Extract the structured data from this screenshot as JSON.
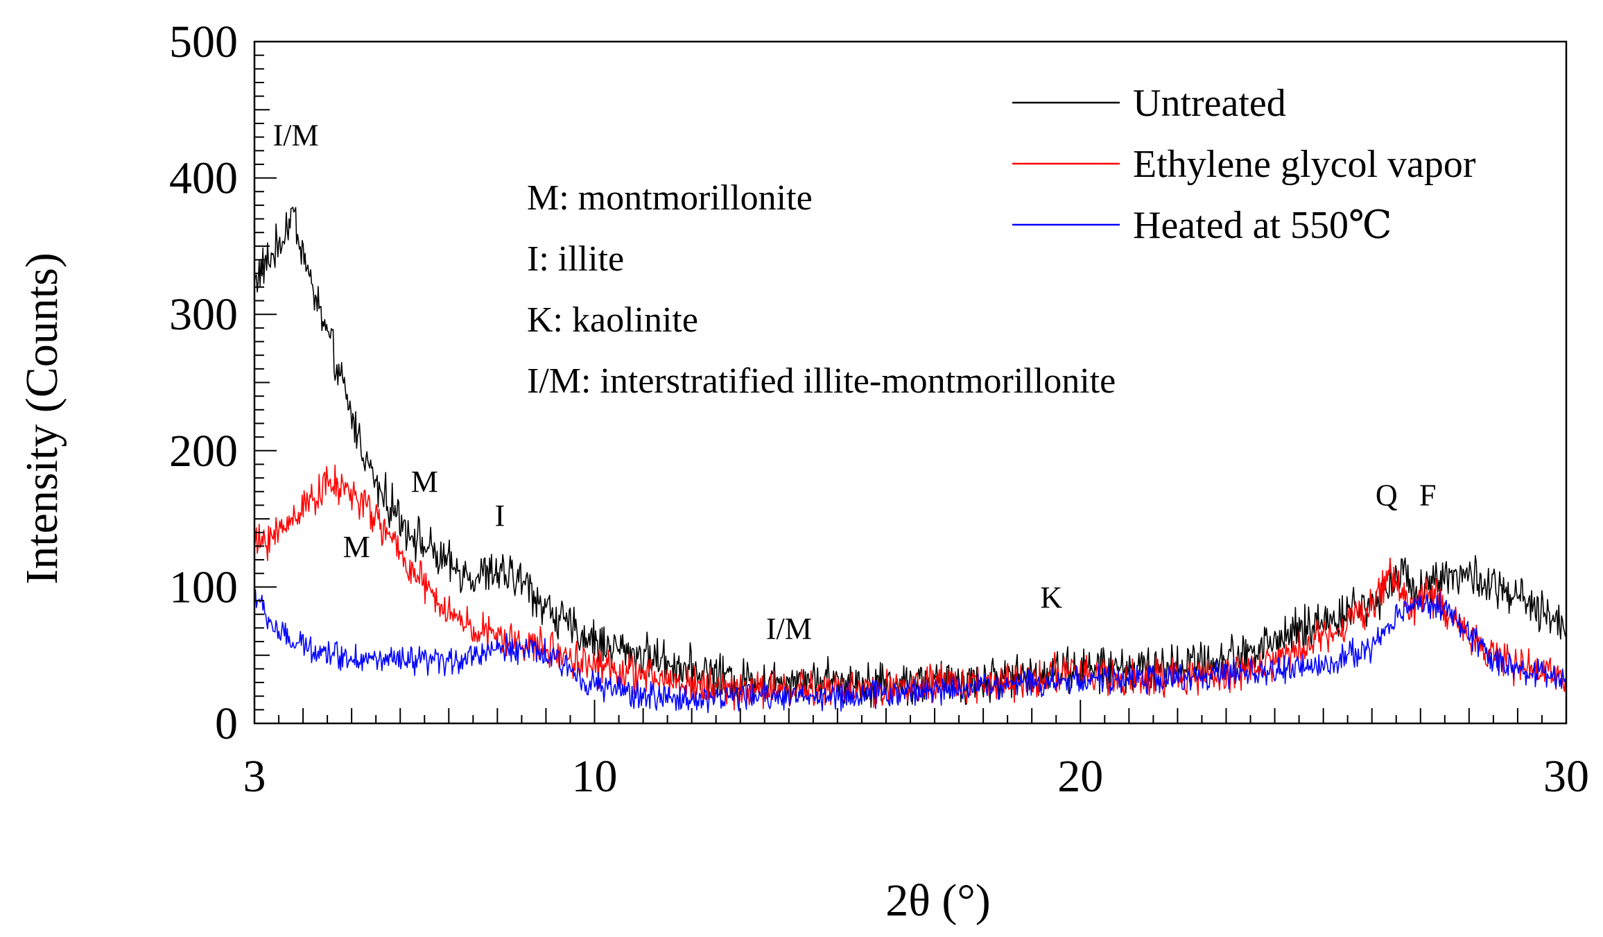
{
  "chart_data": {
    "type": "line",
    "title": "",
    "xlabel": "2θ (°)",
    "ylabel": "Intensity (Counts)",
    "xlim": [
      3,
      30
    ],
    "ylim": [
      0,
      500
    ],
    "x_ticks": [
      3,
      10,
      20,
      30
    ],
    "y_ticks": [
      0,
      100,
      200,
      300,
      400,
      500
    ],
    "grid": false,
    "legend_position": "top-right",
    "series": [
      {
        "name": "Untreated",
        "color": "#000000",
        "noise": 14,
        "points": [
          [
            3,
            325
          ],
          [
            3.5,
            350
          ],
          [
            3.8,
            375
          ],
          [
            4.1,
            330
          ],
          [
            4.5,
            285
          ],
          [
            5,
            225
          ],
          [
            5.5,
            175
          ],
          [
            6,
            150
          ],
          [
            6.5,
            130
          ],
          [
            7,
            115
          ],
          [
            7.5,
            108
          ],
          [
            8,
            110
          ],
          [
            8.5,
            105
          ],
          [
            9,
            85
          ],
          [
            9.5,
            70
          ],
          [
            10,
            60
          ],
          [
            11,
            50
          ],
          [
            12,
            40
          ],
          [
            13,
            32
          ],
          [
            14,
            33
          ],
          [
            15,
            32
          ],
          [
            16,
            30
          ],
          [
            17,
            30
          ],
          [
            18,
            32
          ],
          [
            19,
            35
          ],
          [
            19.5,
            40
          ],
          [
            20,
            40
          ],
          [
            21,
            40
          ],
          [
            22,
            42
          ],
          [
            23,
            47
          ],
          [
            24,
            60
          ],
          [
            25,
            75
          ],
          [
            25.5,
            82
          ],
          [
            26,
            88
          ],
          [
            26.5,
            110
          ],
          [
            27,
            100
          ],
          [
            27.5,
            110
          ],
          [
            28,
            108
          ],
          [
            28.5,
            100
          ],
          [
            29,
            92
          ],
          [
            29.5,
            80
          ],
          [
            30,
            72
          ]
        ]
      },
      {
        "name": "Ethylene glycol vapor",
        "color": "#ff0000",
        "noise": 12,
        "points": [
          [
            3,
            130
          ],
          [
            3.5,
            140
          ],
          [
            4,
            160
          ],
          [
            4.5,
            175
          ],
          [
            5,
            170
          ],
          [
            5.5,
            150
          ],
          [
            6,
            125
          ],
          [
            6.5,
            100
          ],
          [
            7,
            80
          ],
          [
            7.5,
            70
          ],
          [
            8,
            62
          ],
          [
            9,
            55
          ],
          [
            10,
            42
          ],
          [
            11,
            35
          ],
          [
            12,
            28
          ],
          [
            13,
            25
          ],
          [
            14,
            25
          ],
          [
            15,
            25
          ],
          [
            16,
            25
          ],
          [
            17,
            28
          ],
          [
            18,
            30
          ],
          [
            19,
            32
          ],
          [
            19.5,
            38
          ],
          [
            20,
            35
          ],
          [
            21,
            33
          ],
          [
            22,
            32
          ],
          [
            23,
            37
          ],
          [
            24,
            45
          ],
          [
            25,
            65
          ],
          [
            26,
            85
          ],
          [
            26.4,
            112
          ],
          [
            26.8,
            85
          ],
          [
            27.2,
            95
          ],
          [
            27.6,
            80
          ],
          [
            28,
            65
          ],
          [
            28.5,
            50
          ],
          [
            29,
            40
          ],
          [
            30,
            35
          ]
        ]
      },
      {
        "name": "Heated at 550℃",
        "color": "#0000ff",
        "noise": 9,
        "points": [
          [
            3,
            95
          ],
          [
            3.3,
            75
          ],
          [
            3.7,
            60
          ],
          [
            4.2,
            55
          ],
          [
            5,
            48
          ],
          [
            6,
            45
          ],
          [
            7,
            45
          ],
          [
            7.5,
            50
          ],
          [
            8,
            55
          ],
          [
            8.5,
            55
          ],
          [
            9,
            50
          ],
          [
            9.5,
            40
          ],
          [
            10,
            28
          ],
          [
            11,
            20
          ],
          [
            12,
            18
          ],
          [
            13,
            20
          ],
          [
            14,
            20
          ],
          [
            15,
            20
          ],
          [
            16,
            22
          ],
          [
            17,
            25
          ],
          [
            18,
            28
          ],
          [
            19,
            30
          ],
          [
            20,
            32
          ],
          [
            21,
            32
          ],
          [
            22,
            33
          ],
          [
            23,
            35
          ],
          [
            24,
            38
          ],
          [
            25,
            42
          ],
          [
            25.5,
            50
          ],
          [
            26,
            55
          ],
          [
            26.5,
            80
          ],
          [
            27,
            90
          ],
          [
            27.5,
            85
          ],
          [
            28,
            65
          ],
          [
            28.5,
            48
          ],
          [
            29,
            40
          ],
          [
            30,
            32
          ]
        ]
      }
    ],
    "annotations": [
      {
        "text": "I/M",
        "x": 3.85,
        "y": 424,
        "color": "#000000"
      },
      {
        "text": "M",
        "x": 6.5,
        "y": 170,
        "color": "#000000"
      },
      {
        "text": "M",
        "x": 5.1,
        "y": 122,
        "color": "#ff0000"
      },
      {
        "text": "I",
        "x": 8.05,
        "y": 145,
        "color": "#000000"
      },
      {
        "text": "I/M",
        "x": 14.0,
        "y": 62,
        "color": "#000000"
      },
      {
        "text": "K",
        "x": 19.4,
        "y": 85,
        "color": "#000000"
      },
      {
        "text": "Q",
        "x": 26.3,
        "y": 160,
        "color": "#000000"
      },
      {
        "text": "F",
        "x": 27.15,
        "y": 160,
        "color": "#000000"
      }
    ],
    "key_text": [
      "M: montmorillonite",
      "I: illite",
      "K: kaolinite",
      "I/M: interstratified illite-montmorillonite"
    ]
  }
}
